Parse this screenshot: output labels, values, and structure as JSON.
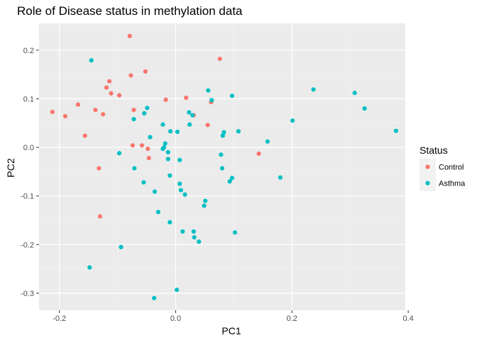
{
  "chart_data": {
    "type": "scatter",
    "title": "Role of Disease status in methylation data",
    "xlabel": "PC1",
    "ylabel": "PC2",
    "xlim": [
      -0.235,
      0.395
    ],
    "ylim": [
      -0.335,
      0.255
    ],
    "x_ticks": [
      -0.2,
      0.0,
      0.2,
      0.4
    ],
    "x_tick_labels": [
      "-0.2",
      "0.0",
      "0.2",
      "0.4"
    ],
    "y_ticks": [
      -0.3,
      -0.2,
      -0.1,
      0.0,
      0.1,
      0.2
    ],
    "y_tick_labels": [
      "-0.3",
      "-0.2",
      "-0.1",
      "0.0",
      "0.1",
      "0.2"
    ],
    "grid": true,
    "legend": {
      "title": "Status",
      "position": "right"
    },
    "series": [
      {
        "name": "Control",
        "color": "#F8766D",
        "points": [
          [
            -0.079,
            0.229
          ],
          [
            0.076,
            0.182
          ],
          [
            -0.052,
            0.156
          ],
          [
            -0.077,
            0.148
          ],
          [
            -0.114,
            0.136
          ],
          [
            -0.119,
            0.123
          ],
          [
            -0.111,
            0.111
          ],
          [
            -0.097,
            0.107
          ],
          [
            0.018,
            0.102
          ],
          [
            -0.017,
            0.098
          ],
          [
            -0.168,
            0.088
          ],
          [
            0.031,
            0.066
          ],
          [
            -0.138,
            0.077
          ],
          [
            -0.072,
            0.077
          ],
          [
            -0.212,
            0.073
          ],
          [
            -0.125,
            0.068
          ],
          [
            -0.19,
            0.064
          ],
          [
            0.061,
            0.093
          ],
          [
            0.055,
            0.046
          ],
          [
            -0.156,
            0.024
          ],
          [
            -0.074,
            0.004
          ],
          [
            -0.058,
            0.004
          ],
          [
            -0.048,
            -0.003
          ],
          [
            -0.046,
            -0.022
          ],
          [
            0.143,
            -0.013
          ],
          [
            -0.132,
            -0.043
          ],
          [
            -0.13,
            -0.142
          ]
        ]
      },
      {
        "name": "Asthma",
        "color": "#00BFC4",
        "points": [
          [
            -0.145,
            0.179
          ],
          [
            0.237,
            0.119
          ],
          [
            0.056,
            0.117
          ],
          [
            0.308,
            0.112
          ],
          [
            0.097,
            0.106
          ],
          [
            0.062,
            0.097
          ],
          [
            -0.049,
            0.081
          ],
          [
            0.325,
            0.08
          ],
          [
            -0.054,
            0.07
          ],
          [
            0.023,
            0.072
          ],
          [
            -0.072,
            0.058
          ],
          [
            0.029,
            0.066
          ],
          [
            0.201,
            0.055
          ],
          [
            -0.022,
            0.047
          ],
          [
            0.024,
            0.047
          ],
          [
            0.003,
            0.032
          ],
          [
            -0.009,
            0.033
          ],
          [
            0.083,
            0.031
          ],
          [
            0.108,
            0.033
          ],
          [
            0.379,
            0.034
          ],
          [
            0.081,
            0.024
          ],
          [
            -0.044,
            0.021
          ],
          [
            -0.018,
            0.008
          ],
          [
            0.158,
            0.012
          ],
          [
            -0.02,
            0.0
          ],
          [
            -0.022,
            -0.003
          ],
          [
            -0.013,
            -0.01
          ],
          [
            0.078,
            -0.015
          ],
          [
            -0.097,
            -0.012
          ],
          [
            -0.013,
            -0.024
          ],
          [
            0.007,
            -0.026
          ],
          [
            -0.071,
            -0.043
          ],
          [
            0.08,
            -0.043
          ],
          [
            -0.01,
            -0.058
          ],
          [
            0.18,
            -0.062
          ],
          [
            0.097,
            -0.063
          ],
          [
            -0.055,
            -0.072
          ],
          [
            0.093,
            -0.07
          ],
          [
            0.007,
            -0.075
          ],
          [
            0.009,
            -0.088
          ],
          [
            0.016,
            -0.097
          ],
          [
            -0.036,
            -0.091
          ],
          [
            0.051,
            -0.11
          ],
          [
            0.049,
            -0.12
          ],
          [
            -0.03,
            -0.133
          ],
          [
            -0.01,
            -0.154
          ],
          [
            0.012,
            -0.173
          ],
          [
            0.031,
            -0.173
          ],
          [
            0.102,
            -0.175
          ],
          [
            0.032,
            -0.185
          ],
          [
            0.04,
            -0.194
          ],
          [
            -0.094,
            -0.205
          ],
          [
            -0.148,
            -0.247
          ],
          [
            0.002,
            -0.293
          ],
          [
            -0.037,
            -0.31
          ]
        ]
      }
    ]
  }
}
